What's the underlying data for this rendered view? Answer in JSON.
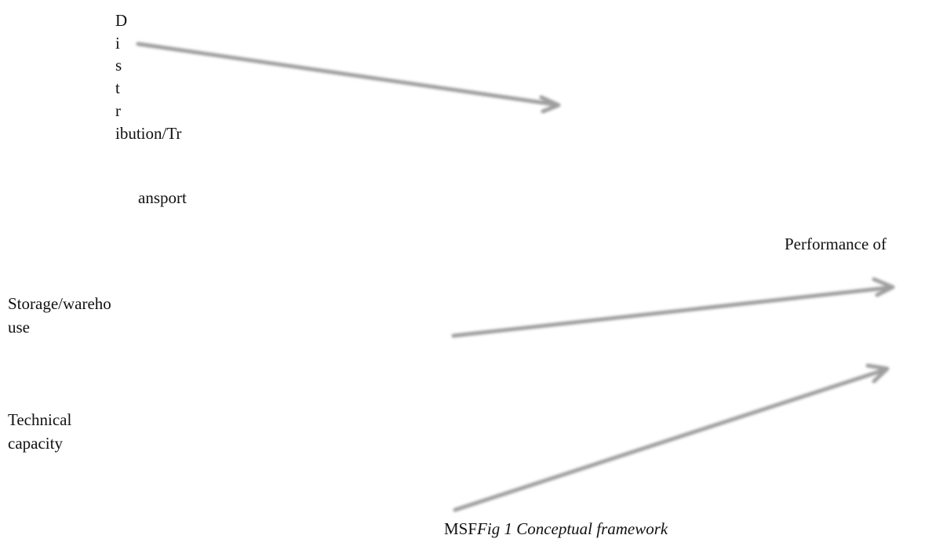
{
  "diagram": {
    "distribution": {
      "stacked_letters": [
        "D",
        "i",
        "s",
        "t",
        "r"
      ],
      "line_1": "ibution/Tr",
      "line_2": "ansport"
    },
    "storage": {
      "line_1": "Storage/wareho",
      "line_2": "use"
    },
    "technical": {
      "line_1": "Technical",
      "line_2": "capacity"
    },
    "outcome": {
      "label": "Performance of"
    },
    "caption": {
      "prefix": "MSF",
      "text": "Fig 1 Conceptual framework"
    },
    "arrow_color": "#9e9e9e"
  }
}
